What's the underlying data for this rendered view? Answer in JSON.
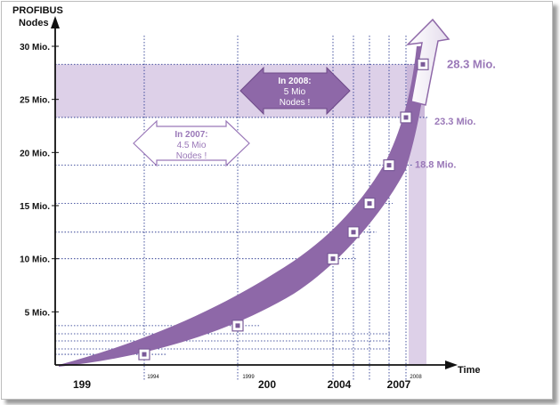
{
  "chart_data": {
    "type": "area",
    "ylabel": "PROFIBUS Nodes",
    "xlabel": "Time",
    "y_ticks": [
      "5 Mio.",
      "10 Mio.",
      "15 Mio.",
      "20 Mio.",
      "25 Mio.",
      "30 Mio."
    ],
    "y_tick_values": [
      5,
      10,
      15,
      20,
      25,
      30
    ],
    "ylim": [
      0,
      31
    ],
    "x_labels_major": [
      "199",
      "200",
      "2004",
      "2007"
    ],
    "x_labels_minor": [
      "1994",
      "1999",
      "2008"
    ],
    "points": [
      {
        "year": 1994,
        "value": 1.0
      },
      {
        "year": 1999,
        "value": 3.7
      },
      {
        "year": 2004,
        "value": 10.0
      },
      {
        "year": 2005,
        "value": 12.5
      },
      {
        "year": 2006,
        "value": 15.2
      },
      {
        "year": 2007,
        "value": 18.8
      },
      {
        "year": 2008,
        "value": 23.3
      },
      {
        "year": 2009,
        "value": 28.3
      }
    ],
    "value_labels": [
      {
        "text": "18.8 Mio.",
        "value": 18.8
      },
      {
        "text": "23.3 Mio.",
        "value": 23.3
      },
      {
        "text": "28.3 Mio.",
        "value": 28.3
      }
    ],
    "annotations": [
      {
        "heading": "In 2007:",
        "line1": "4.5 Mio",
        "line2": "Nodes !"
      },
      {
        "heading": "In 2008:",
        "line1": "5 Mio",
        "line2": "Nodes !"
      }
    ],
    "colors": {
      "curve": "#8e68a8",
      "band": "#ddd0e8",
      "text": "#9a78b8",
      "grid": "#1a2a88"
    }
  }
}
